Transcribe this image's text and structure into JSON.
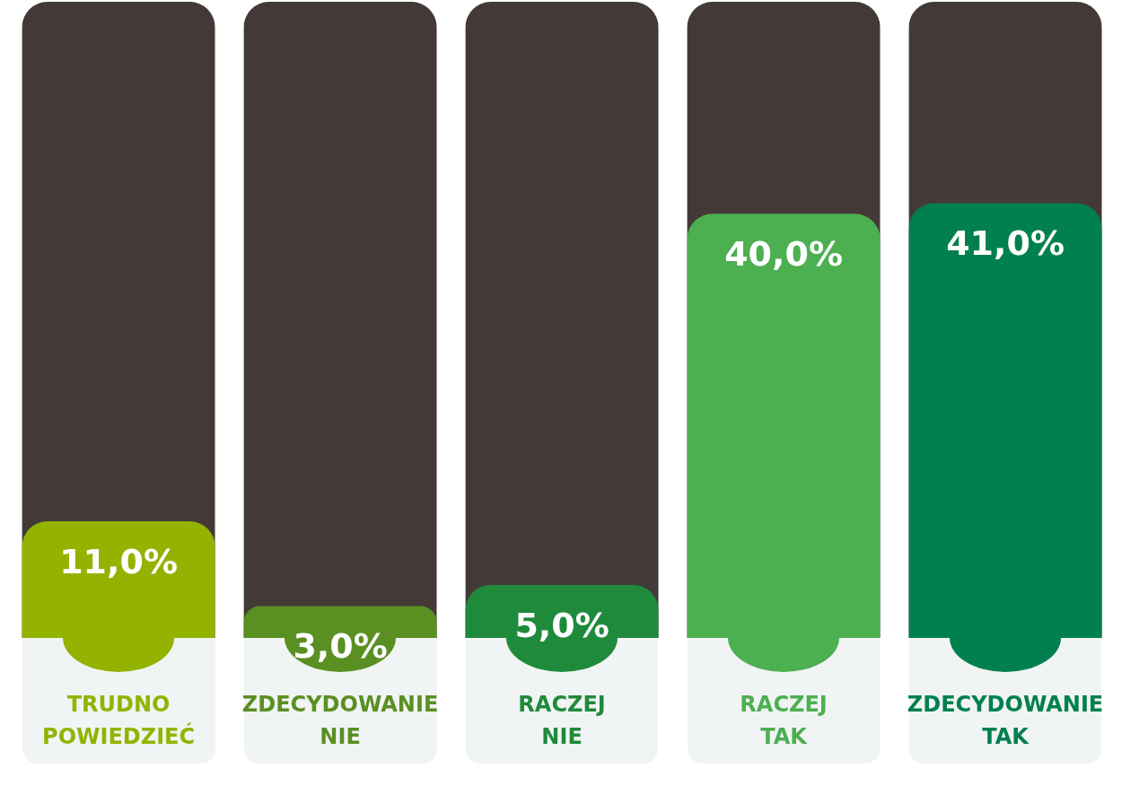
{
  "chart_data": {
    "type": "bar",
    "categories": [
      "TRUDNO POWIEDZIEĆ",
      "ZDECYDOWANIE NIE",
      "RACZEJ NIE",
      "RACZEJ TAK",
      "ZDECYDOWANIE TAK"
    ],
    "values": [
      11,
      3,
      5,
      40,
      41
    ],
    "colors": [
      "#93b300",
      "#5a8f22",
      "#1f8a3b",
      "#4caf50",
      "#00804f"
    ],
    "value_labels": [
      "11,0%",
      "3,0%",
      "5,0%",
      "40,0%",
      "41,0%"
    ]
  }
}
